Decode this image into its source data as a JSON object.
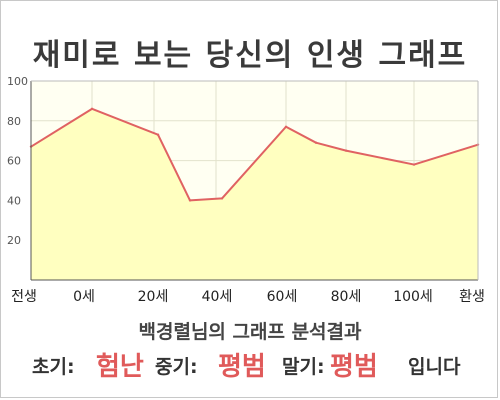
{
  "chart_data": {
    "type": "area",
    "title": "재미로 보는 당신의 인생 그래프",
    "x_categories": [
      "전생",
      "0세",
      "20세",
      "40세",
      "60세",
      "80세",
      "100세",
      "환생"
    ],
    "points": [
      {
        "x": "전생",
        "y": 67
      },
      {
        "x": "0세",
        "y": 86
      },
      {
        "x": "20세",
        "y": 73
      },
      {
        "x": "~35세",
        "y": 40
      },
      {
        "x": "40세",
        "y": 41
      },
      {
        "x": "60세",
        "y": 77
      },
      {
        "x": "~70세",
        "y": 69
      },
      {
        "x": "80세",
        "y": 65
      },
      {
        "x": "100세",
        "y": 58
      },
      {
        "x": "환생",
        "y": 68
      }
    ],
    "y_ticks": [
      "20",
      "40",
      "60",
      "80",
      "100"
    ],
    "ylim": [
      0,
      100
    ],
    "grid": true,
    "colors": {
      "line": "#e06262",
      "fill": "#ffffc0",
      "plot_bg": "#fffff2",
      "grid": "#e2e2cc"
    }
  },
  "result": {
    "subtitle": "백경렬님의 그래프 분석결과",
    "early_label": "초기:",
    "early_value": "험난",
    "mid_label": "중기:",
    "mid_value": "평범",
    "late_label": "말기:",
    "late_value": "평범",
    "ending": "입니다"
  }
}
